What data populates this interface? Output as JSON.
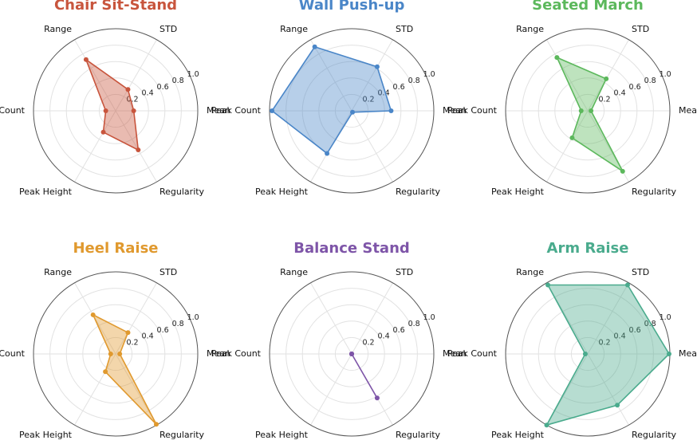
{
  "chart_data": [
    {
      "type": "radar",
      "title": "Chair Sit-Stand",
      "color": "#c8553d",
      "axes": [
        "Mean",
        "STD",
        "Range",
        "Peak Count",
        "Peak Height",
        "Regularity"
      ],
      "values": [
        0.22,
        0.3,
        0.72,
        0.12,
        0.3,
        0.55
      ],
      "rticks": [
        "0.2",
        "0.4",
        "0.6",
        "0.8",
        "1.0"
      ],
      "rlim": [
        0,
        1
      ]
    },
    {
      "type": "radar",
      "title": "Wall Push-up",
      "color": "#4a86c8",
      "axes": [
        "Mean",
        "STD",
        "Range",
        "Peak Count",
        "Peak Height",
        "Regularity"
      ],
      "values": [
        0.48,
        0.62,
        0.9,
        0.97,
        0.6,
        0.02
      ],
      "rticks": [
        "0.2",
        "0.4",
        "0.6",
        "0.8",
        "1.0"
      ],
      "rlim": [
        0,
        1
      ]
    },
    {
      "type": "radar",
      "title": "Seated March",
      "color": "#5cb85c",
      "axes": [
        "Mean",
        "STD",
        "Range",
        "Peak Count",
        "Peak Height",
        "Regularity"
      ],
      "values": [
        0.04,
        0.45,
        0.75,
        0.08,
        0.38,
        0.85
      ],
      "rticks": [
        "0.2",
        "0.4",
        "0.6",
        "0.8",
        "1.0"
      ],
      "rlim": [
        0,
        1
      ]
    },
    {
      "type": "radar",
      "title": "Heel Raise",
      "color": "#e0992e",
      "axes": [
        "Mean",
        "STD",
        "Range",
        "Peak Count",
        "Peak Height",
        "Regularity"
      ],
      "values": [
        0.05,
        0.3,
        0.55,
        0.06,
        0.25,
        0.99
      ],
      "rticks": [
        "0.2",
        "0.4",
        "0.6",
        "0.8",
        "1.0"
      ],
      "rlim": [
        0,
        1
      ]
    },
    {
      "type": "radar",
      "title": "Balance Stand",
      "color": "#7e55a8",
      "axes": [
        "Mean",
        "STD",
        "Range",
        "Peak Count",
        "Peak Height",
        "Regularity"
      ],
      "values": [
        0.0,
        0.0,
        0.0,
        0.0,
        0.0,
        0.62
      ],
      "rticks": [
        "0.2",
        "0.4",
        "0.6",
        "0.8",
        "1.0"
      ],
      "rlim": [
        0,
        1
      ]
    },
    {
      "type": "radar",
      "title": "Arm Raise",
      "color": "#4aab8d",
      "axes": [
        "Mean",
        "STD",
        "Range",
        "Peak Count",
        "Peak Height",
        "Regularity"
      ],
      "values": [
        0.99,
        0.97,
        0.97,
        0.03,
        1.0,
        0.72
      ],
      "rticks": [
        "0.2",
        "0.4",
        "0.6",
        "0.8",
        "1.0"
      ],
      "rlim": [
        0,
        1
      ]
    }
  ]
}
